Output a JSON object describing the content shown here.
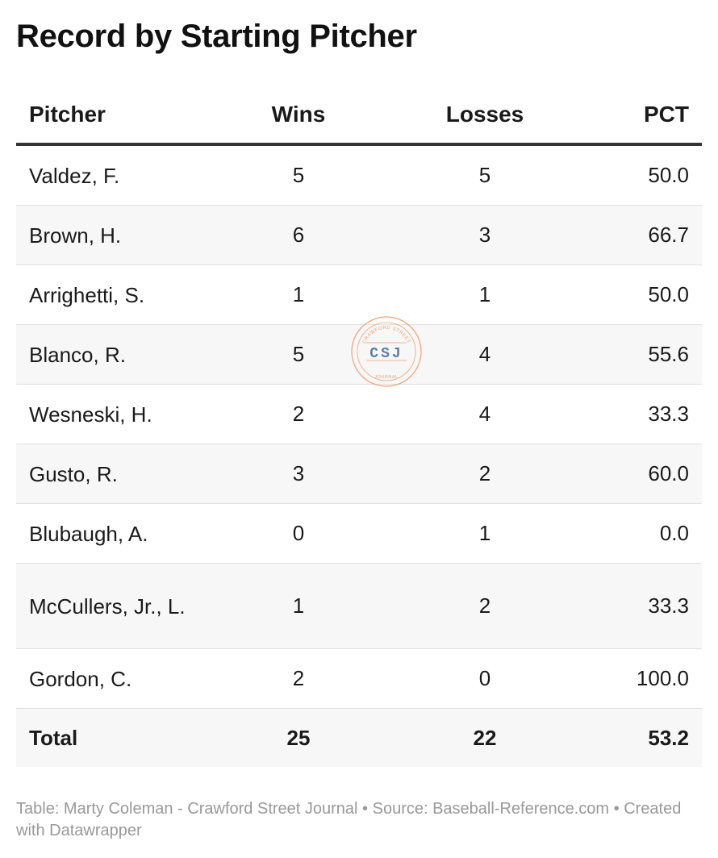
{
  "title": "Record by Starting Pitcher",
  "chart_data": {
    "type": "table",
    "columns": [
      "Pitcher",
      "Wins",
      "Losses",
      "PCT"
    ],
    "rows": [
      {
        "pitcher": "Valdez, F.",
        "wins": "5",
        "losses": "5",
        "pct": "50.0"
      },
      {
        "pitcher": "Brown, H.",
        "wins": "6",
        "losses": "3",
        "pct": "66.7"
      },
      {
        "pitcher": "Arrighetti, S.",
        "wins": "1",
        "losses": "1",
        "pct": "50.0"
      },
      {
        "pitcher": "Blanco, R.",
        "wins": "5",
        "losses": "4",
        "pct": "55.6"
      },
      {
        "pitcher": "Wesneski, H.",
        "wins": "2",
        "losses": "4",
        "pct": "33.3"
      },
      {
        "pitcher": "Gusto, R.",
        "wins": "3",
        "losses": "2",
        "pct": "60.0"
      },
      {
        "pitcher": "Blubaugh, A.",
        "wins": "0",
        "losses": "1",
        "pct": "0.0"
      },
      {
        "pitcher": "McCullers, Jr., L.",
        "wins": "1",
        "losses": "2",
        "pct": "33.3"
      },
      {
        "pitcher": "Gordon, C.",
        "wins": "2",
        "losses": "0",
        "pct": "100.0"
      }
    ],
    "total": {
      "pitcher": "Total",
      "wins": "25",
      "losses": "22",
      "pct": "53.2"
    }
  },
  "footer": "Table: Marty Coleman - Crawford Street Journal • Source: Baseball-Reference.com • Created with Datawrapper",
  "watermark": {
    "initials": "CSJ",
    "top_text": "CRAWFORD STREET",
    "bottom_text": "JOURNAL",
    "ring_color": "#f0a070",
    "text_color": "#5a7fa8"
  }
}
